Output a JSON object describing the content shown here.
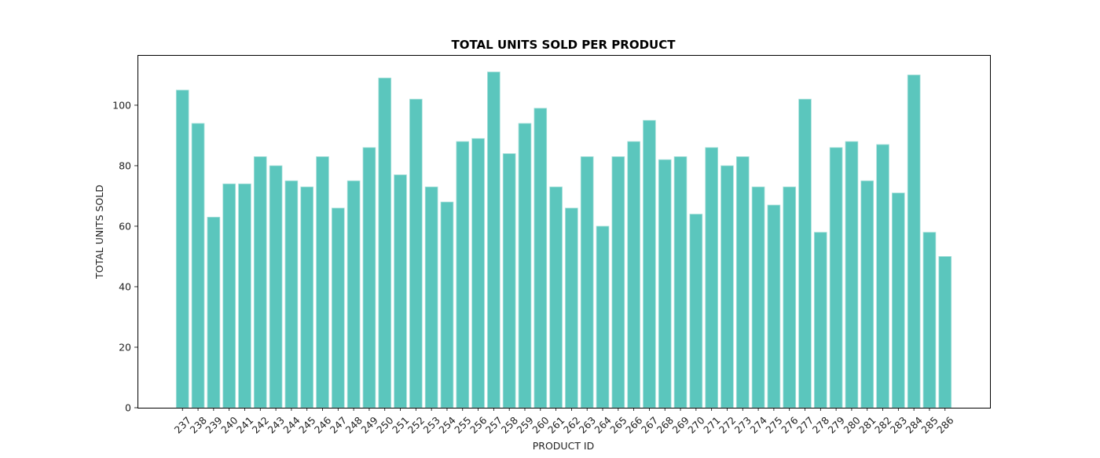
{
  "chart_data": {
    "type": "bar",
    "title": "TOTAL UNITS SOLD PER PRODUCT",
    "xlabel": "PRODUCT ID",
    "ylabel": "TOTAL UNITS SOLD",
    "categories": [
      "237",
      "238",
      "239",
      "240",
      "241",
      "242",
      "243",
      "244",
      "245",
      "246",
      "247",
      "248",
      "249",
      "250",
      "251",
      "252",
      "253",
      "254",
      "255",
      "256",
      "257",
      "258",
      "259",
      "260",
      "261",
      "262",
      "263",
      "264",
      "265",
      "266",
      "267",
      "268",
      "269",
      "270",
      "271",
      "272",
      "273",
      "274",
      "275",
      "276",
      "277",
      "278",
      "279",
      "280",
      "281",
      "282",
      "283",
      "284",
      "285",
      "286"
    ],
    "values": [
      105,
      94,
      63,
      74,
      74,
      83,
      80,
      75,
      73,
      83,
      66,
      75,
      86,
      109,
      77,
      102,
      73,
      68,
      88,
      89,
      111,
      84,
      94,
      99,
      73,
      66,
      83,
      60,
      83,
      88,
      95,
      82,
      83,
      64,
      86,
      80,
      83,
      73,
      67,
      73,
      102,
      58,
      86,
      88,
      75,
      87,
      71,
      110,
      58,
      50
    ],
    "ylim": [
      0,
      116.6
    ],
    "yticks": [
      0,
      20,
      40,
      60,
      80,
      100
    ],
    "xtick_rotation_deg": 45,
    "grid": false,
    "legend": null,
    "bar_color": "#5bc6bd",
    "bar_edge_color": "#a8e0da"
  }
}
